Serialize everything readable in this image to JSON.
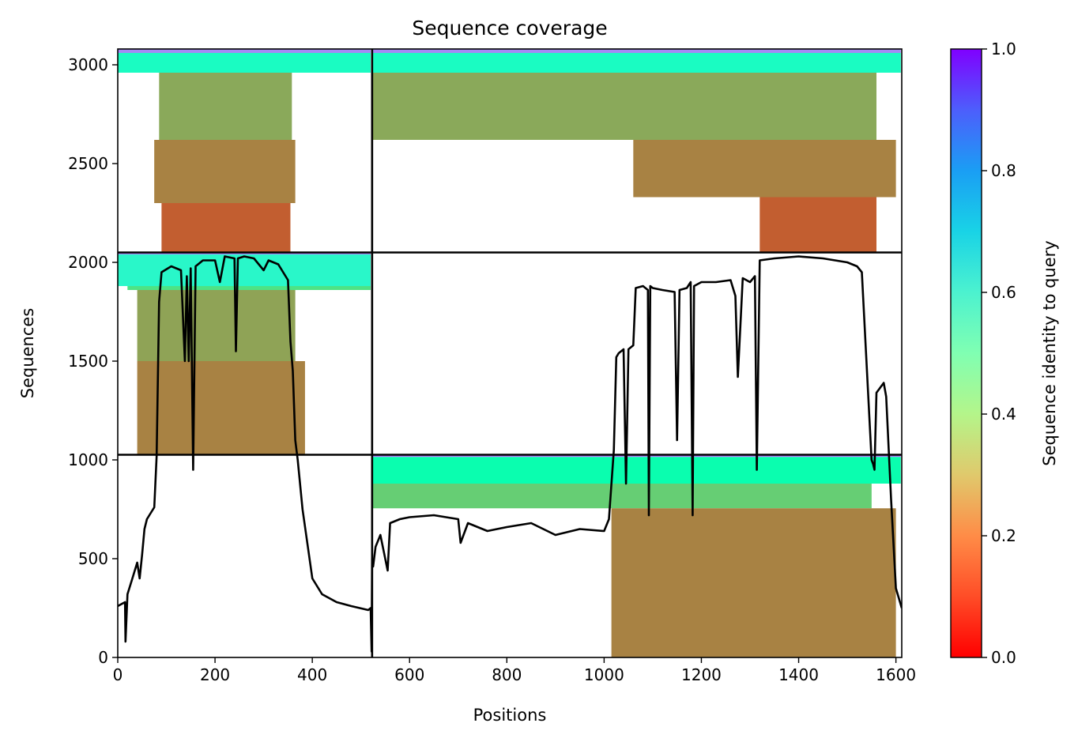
{
  "chart_data": {
    "type": "heatmap",
    "title": "Sequence coverage",
    "xlabel": "Positions",
    "ylabel": "Sequences",
    "xlim": [
      0,
      1612
    ],
    "ylim": [
      0,
      3080
    ],
    "xticks": [
      "0",
      "200",
      "400",
      "600",
      "800",
      "1000",
      "1200",
      "1400",
      "1600"
    ],
    "xtick_values": [
      0,
      200,
      400,
      600,
      800,
      1000,
      1200,
      1400,
      1600
    ],
    "yticks": [
      "0",
      "500",
      "1000",
      "1500",
      "2000",
      "2500",
      "3000"
    ],
    "ytick_values": [
      0,
      500,
      1000,
      1500,
      2000,
      2500,
      3000
    ],
    "colorbar": {
      "label": "Sequence identity to query",
      "range": [
        0,
        1
      ],
      "ticks": [
        "0.0",
        "0.2",
        "0.4",
        "0.6",
        "0.8",
        "1.0"
      ],
      "tick_values": [
        0,
        0.2,
        0.4,
        0.6,
        0.8,
        1.0
      ],
      "colormap": "rainbow_r"
    },
    "block_dividers": {
      "x": [
        523
      ],
      "y": [
        1026,
        2050
      ]
    },
    "blocks": [
      {
        "region": "lower-right",
        "x_range": [
          523,
          1612
        ],
        "y_range": [
          0,
          1026
        ],
        "bands": [
          {
            "y": [
              1015,
              1026
            ],
            "identity": 0.85,
            "x": [
              523,
              1610
            ]
          },
          {
            "y": [
              880,
              1015
            ],
            "identity": 0.48,
            "x": [
              523,
              1610
            ]
          },
          {
            "y": [
              755,
              880
            ],
            "identity": 0.3,
            "x": [
              523,
              1550
            ]
          },
          {
            "y": [
              0,
              755
            ],
            "identity": 0.17,
            "x": [
              1015,
              1600
            ]
          }
        ]
      },
      {
        "region": "middle-left",
        "x_range": [
          0,
          523
        ],
        "y_range": [
          1026,
          2050
        ],
        "bands": [
          {
            "y": [
              2040,
              2050
            ],
            "identity": 0.82,
            "x": [
              0,
              520
            ]
          },
          {
            "y": [
              1880,
              2040
            ],
            "identity": 0.58,
            "x": [
              0,
              520
            ]
          },
          {
            "y": [
              1860,
              1880
            ],
            "identity": 0.35,
            "x": [
              20,
              520
            ]
          },
          {
            "y": [
              1500,
              1860
            ],
            "identity": 0.22,
            "x": [
              40,
              365
            ]
          },
          {
            "y": [
              1026,
              1500
            ],
            "identity": 0.17,
            "x": [
              40,
              385
            ]
          }
        ]
      },
      {
        "region": "upper-left",
        "x_range": [
          0,
          523
        ],
        "y_range": [
          2050,
          3080
        ],
        "bands": [
          {
            "y": [
              3060,
              3080
            ],
            "identity": 0.82,
            "x": [
              0,
              520
            ]
          },
          {
            "y": [
              2960,
              3060
            ],
            "identity": 0.55,
            "x": [
              0,
              520
            ]
          },
          {
            "y": [
              2620,
              2960
            ],
            "identity": 0.23,
            "x": [
              85,
              358
            ]
          },
          {
            "y": [
              2300,
              2620
            ],
            "identity": 0.17,
            "x": [
              75,
              365
            ]
          },
          {
            "y": [
              2050,
              2300
            ],
            "identity": 0.12,
            "x": [
              90,
              355
            ]
          }
        ]
      },
      {
        "region": "upper-right",
        "x_range": [
          523,
          1612
        ],
        "y_range": [
          2050,
          3080
        ],
        "bands": [
          {
            "y": [
              3060,
              3080
            ],
            "identity": 0.82,
            "x": [
              523,
              1610
            ]
          },
          {
            "y": [
              2960,
              3060
            ],
            "identity": 0.55,
            "x": [
              523,
              1610
            ]
          },
          {
            "y": [
              2620,
              2960
            ],
            "identity": 0.23,
            "x": [
              523,
              1560
            ]
          },
          {
            "y": [
              2330,
              2620
            ],
            "identity": 0.17,
            "x": [
              1060,
              1600
            ]
          },
          {
            "y": [
              2050,
              2330
            ],
            "identity": 0.12,
            "x": [
              1320,
              1560
            ]
          }
        ]
      }
    ],
    "coverage_line": {
      "name": "",
      "x": [
        0,
        15,
        16,
        20,
        30,
        40,
        45,
        50,
        55,
        60,
        75,
        80,
        85,
        90,
        110,
        130,
        138,
        142,
        146,
        150,
        155,
        160,
        175,
        200,
        210,
        220,
        240,
        243,
        247,
        260,
        280,
        300,
        310,
        330,
        350,
        355,
        360,
        365,
        370,
        380,
        400,
        420,
        450,
        480,
        515,
        520,
        522,
        523,
        525,
        530,
        540,
        555,
        560,
        580,
        600,
        650,
        700,
        705,
        720,
        760,
        800,
        850,
        900,
        950,
        1000,
        1010,
        1020,
        1025,
        1030,
        1040,
        1045,
        1050,
        1060,
        1065,
        1080,
        1090,
        1092,
        1095,
        1100,
        1120,
        1145,
        1150,
        1155,
        1170,
        1178,
        1182,
        1185,
        1200,
        1230,
        1260,
        1270,
        1275,
        1285,
        1300,
        1310,
        1314,
        1320,
        1350,
        1400,
        1450,
        1500,
        1510,
        1520,
        1530,
        1550,
        1553,
        1556,
        1560,
        1575,
        1580,
        1590,
        1600,
        1612
      ],
      "y": [
        260,
        280,
        80,
        320,
        400,
        480,
        400,
        520,
        650,
        700,
        760,
        1020,
        1800,
        1950,
        1980,
        1960,
        1500,
        1930,
        1500,
        1970,
        950,
        1980,
        2010,
        2010,
        1900,
        2030,
        2020,
        1550,
        2020,
        2030,
        2020,
        1960,
        2010,
        1990,
        1910,
        1600,
        1450,
        1100,
        1000,
        750,
        400,
        320,
        280,
        260,
        240,
        250,
        30,
        500,
        460,
        560,
        620,
        440,
        680,
        700,
        710,
        720,
        700,
        580,
        680,
        640,
        660,
        680,
        620,
        650,
        640,
        700,
        1050,
        1520,
        1540,
        1560,
        880,
        1560,
        1580,
        1870,
        1880,
        1860,
        720,
        1880,
        1870,
        1860,
        1850,
        1100,
        1860,
        1870,
        1900,
        720,
        1880,
        1900,
        1900,
        1910,
        1830,
        1420,
        1920,
        1900,
        1930,
        950,
        2010,
        2020,
        2030,
        2020,
        2000,
        1990,
        1980,
        1950,
        1000,
        980,
        950,
        1340,
        1390,
        1320,
        800,
        350,
        250
      ]
    }
  }
}
